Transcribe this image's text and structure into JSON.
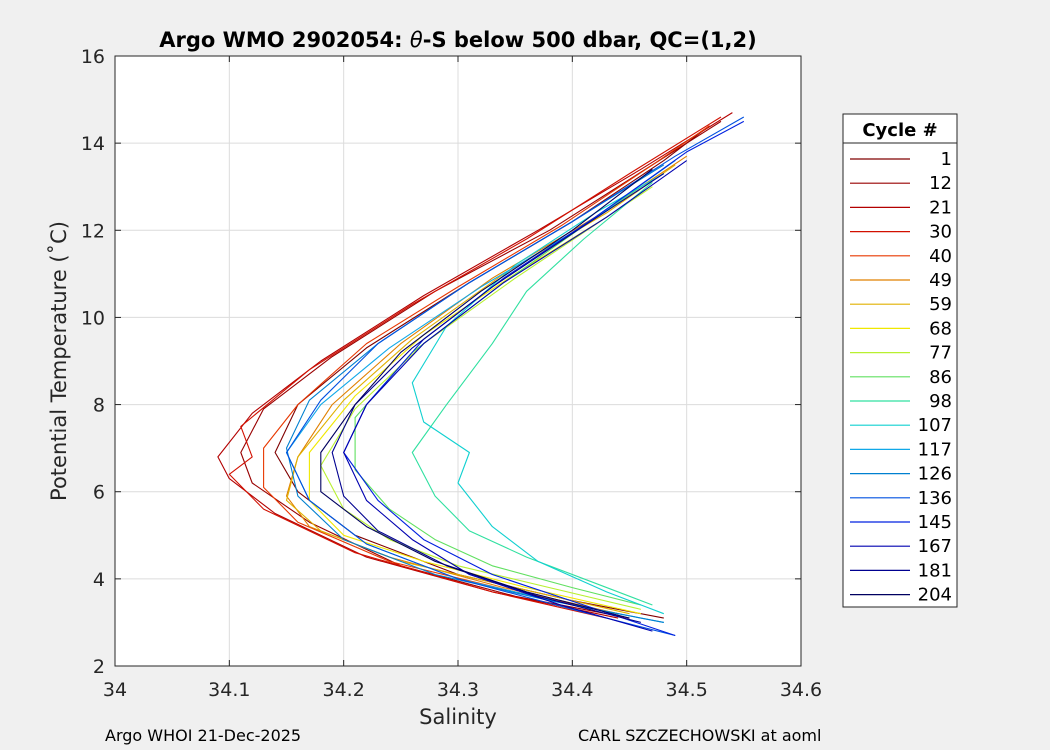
{
  "chart_data": {
    "type": "line",
    "title": {
      "prefix": "Argo WMO 2902054: ",
      "symbol": "θ",
      "suffix": "-S below 500 dbar,  QC=(1,2)"
    },
    "xlabel": "Salinity",
    "ylabel": "Potential Temperature (˚C)",
    "xlim": [
      34.0,
      34.6
    ],
    "ylim": [
      2,
      16
    ],
    "xticks": [
      34.0,
      34.1,
      34.2,
      34.3,
      34.4,
      34.5,
      34.6
    ],
    "xtick_labels": [
      "34",
      "34.1",
      "34.2",
      "34.3",
      "34.4",
      "34.5",
      "34.6"
    ],
    "yticks": [
      2,
      4,
      6,
      8,
      10,
      12,
      14,
      16
    ],
    "ytick_labels": [
      "2",
      "4",
      "6",
      "8",
      "10",
      "12",
      "14",
      "16"
    ],
    "grid": true,
    "legend": {
      "title": "Cycle #",
      "placement": "outside-right",
      "entries": [
        {
          "label": "1",
          "color": "#800000"
        },
        {
          "label": "12",
          "color": "#990000"
        },
        {
          "label": "21",
          "color": "#b30000"
        },
        {
          "label": "30",
          "color": "#d21000"
        },
        {
          "label": "40",
          "color": "#e83800"
        },
        {
          "label": "49",
          "color": "#e08000"
        },
        {
          "label": "59",
          "color": "#e0b000"
        },
        {
          "label": "68",
          "color": "#f0e800"
        },
        {
          "label": "77",
          "color": "#b8f030"
        },
        {
          "label": "86",
          "color": "#60e060"
        },
        {
          "label": "98",
          "color": "#30e0a0"
        },
        {
          "label": "107",
          "color": "#10d0d0"
        },
        {
          "label": "117",
          "color": "#10a8e8"
        },
        {
          "label": "126",
          "color": "#0080d0"
        },
        {
          "label": "136",
          "color": "#0050e0"
        },
        {
          "label": "145",
          "color": "#0020e0"
        },
        {
          "label": "167",
          "color": "#0000b0"
        },
        {
          "label": "181",
          "color": "#000090"
        },
        {
          "label": "204",
          "color": "#000060"
        }
      ]
    },
    "series": [
      {
        "name": "1",
        "color": "#800000",
        "points": [
          [
            34.48,
            3.1
          ],
          [
            34.4,
            3.5
          ],
          [
            34.3,
            4.1
          ],
          [
            34.21,
            5.0
          ],
          [
            34.16,
            6.0
          ],
          [
            34.14,
            6.9
          ],
          [
            34.16,
            8.0
          ],
          [
            34.22,
            9.3
          ],
          [
            34.31,
            10.8
          ],
          [
            34.4,
            12.2
          ],
          [
            34.48,
            13.6
          ],
          [
            34.52,
            14.4
          ]
        ]
      },
      {
        "name": "12",
        "color": "#990000",
        "points": [
          [
            34.45,
            3.1
          ],
          [
            34.35,
            3.6
          ],
          [
            34.25,
            4.3
          ],
          [
            34.17,
            5.3
          ],
          [
            34.12,
            6.2
          ],
          [
            34.11,
            6.9
          ],
          [
            34.13,
            7.9
          ],
          [
            34.19,
            9.1
          ],
          [
            34.28,
            10.6
          ],
          [
            34.38,
            12.0
          ],
          [
            34.47,
            13.5
          ],
          [
            34.53,
            14.5
          ]
        ]
      },
      {
        "name": "21",
        "color": "#b30000",
        "points": [
          [
            34.44,
            3.1
          ],
          [
            34.33,
            3.7
          ],
          [
            34.22,
            4.5
          ],
          [
            34.14,
            5.5
          ],
          [
            34.1,
            6.3
          ],
          [
            34.09,
            6.8
          ],
          [
            34.12,
            7.8
          ],
          [
            34.18,
            9.0
          ],
          [
            34.27,
            10.5
          ],
          [
            34.37,
            12.0
          ],
          [
            34.46,
            13.4
          ],
          [
            34.54,
            14.7
          ]
        ]
      },
      {
        "name": "30",
        "color": "#d21000",
        "points": [
          [
            34.43,
            3.1
          ],
          [
            34.33,
            3.7
          ],
          [
            34.21,
            4.6
          ],
          [
            34.13,
            5.6
          ],
          [
            34.1,
            6.4
          ],
          [
            34.12,
            6.8
          ],
          [
            34.11,
            7.5
          ],
          [
            34.17,
            8.8
          ],
          [
            34.26,
            10.3
          ],
          [
            34.36,
            11.8
          ],
          [
            34.45,
            13.3
          ],
          [
            34.53,
            14.6
          ]
        ]
      },
      {
        "name": "40",
        "color": "#e83800",
        "points": [
          [
            34.44,
            3.2
          ],
          [
            34.35,
            3.7
          ],
          [
            34.24,
            4.4
          ],
          [
            34.16,
            5.3
          ],
          [
            34.13,
            6.1
          ],
          [
            34.13,
            7.0
          ],
          [
            34.16,
            8.0
          ],
          [
            34.22,
            9.4
          ],
          [
            34.3,
            10.7
          ],
          [
            34.39,
            12.1
          ],
          [
            34.47,
            13.5
          ],
          [
            34.52,
            14.4
          ]
        ]
      },
      {
        "name": "49",
        "color": "#e08000",
        "points": [
          [
            34.44,
            3.2
          ],
          [
            34.34,
            3.8
          ],
          [
            34.24,
            4.5
          ],
          [
            34.17,
            5.2
          ],
          [
            34.15,
            5.9
          ],
          [
            34.16,
            6.8
          ],
          [
            34.19,
            8.0
          ],
          [
            34.25,
            9.4
          ],
          [
            34.33,
            10.9
          ],
          [
            34.42,
            12.3
          ],
          [
            34.5,
            13.7
          ]
        ]
      },
      {
        "name": "59",
        "color": "#e0b000",
        "points": [
          [
            34.45,
            3.2
          ],
          [
            34.35,
            3.8
          ],
          [
            34.25,
            4.4
          ],
          [
            34.18,
            5.1
          ],
          [
            34.15,
            5.8
          ],
          [
            34.16,
            6.8
          ],
          [
            34.2,
            8.1
          ],
          [
            34.26,
            9.5
          ],
          [
            34.34,
            11.0
          ],
          [
            34.43,
            12.4
          ],
          [
            34.49,
            13.5
          ]
        ]
      },
      {
        "name": "68",
        "color": "#f0e800",
        "points": [
          [
            34.46,
            3.2
          ],
          [
            34.36,
            3.8
          ],
          [
            34.27,
            4.4
          ],
          [
            34.2,
            5.0
          ],
          [
            34.17,
            5.8
          ],
          [
            34.17,
            6.9
          ],
          [
            34.21,
            8.2
          ],
          [
            34.27,
            9.6
          ],
          [
            34.35,
            11.0
          ],
          [
            34.43,
            12.3
          ]
        ]
      },
      {
        "name": "77",
        "color": "#b8f030",
        "points": [
          [
            34.46,
            3.3
          ],
          [
            34.38,
            3.8
          ],
          [
            34.3,
            4.3
          ],
          [
            34.24,
            4.9
          ],
          [
            34.2,
            5.6
          ],
          [
            34.18,
            6.6
          ],
          [
            34.21,
            7.9
          ],
          [
            34.27,
            9.4
          ],
          [
            34.35,
            10.9
          ],
          [
            34.43,
            12.3
          ],
          [
            34.47,
            13.0
          ]
        ]
      },
      {
        "name": "86",
        "color": "#60e060",
        "points": [
          [
            34.46,
            3.4
          ],
          [
            34.4,
            3.8
          ],
          [
            34.33,
            4.3
          ],
          [
            34.28,
            4.9
          ],
          [
            34.24,
            5.6
          ],
          [
            34.21,
            6.5
          ],
          [
            34.21,
            7.7
          ],
          [
            34.26,
            9.2
          ],
          [
            34.34,
            10.8
          ],
          [
            34.41,
            12.1
          ],
          [
            34.46,
            13.0
          ]
        ]
      },
      {
        "name": "98",
        "color": "#30e0a0",
        "points": [
          [
            34.47,
            3.4
          ],
          [
            34.42,
            3.9
          ],
          [
            34.36,
            4.5
          ],
          [
            34.31,
            5.1
          ],
          [
            34.28,
            5.9
          ],
          [
            34.26,
            6.9
          ],
          [
            34.29,
            8.0
          ],
          [
            34.33,
            9.4
          ],
          [
            34.36,
            10.6
          ],
          [
            34.41,
            11.8
          ],
          [
            34.47,
            13.1
          ]
        ]
      },
      {
        "name": "107",
        "color": "#10d0d0",
        "points": [
          [
            34.48,
            3.2
          ],
          [
            34.43,
            3.7
          ],
          [
            34.37,
            4.4
          ],
          [
            34.33,
            5.2
          ],
          [
            34.3,
            6.2
          ],
          [
            34.31,
            6.9
          ],
          [
            34.27,
            7.6
          ],
          [
            34.26,
            8.5
          ],
          [
            34.29,
            9.8
          ],
          [
            34.35,
            11.2
          ],
          [
            34.42,
            12.4
          ],
          [
            34.48,
            13.3
          ]
        ]
      },
      {
        "name": "117",
        "color": "#10a8e8",
        "points": [
          [
            34.48,
            3.0
          ],
          [
            34.4,
            3.4
          ],
          [
            34.3,
            4.0
          ],
          [
            34.22,
            4.8
          ],
          [
            34.17,
            5.8
          ],
          [
            34.15,
            6.9
          ],
          [
            34.18,
            8.0
          ],
          [
            34.24,
            9.3
          ],
          [
            34.32,
            10.7
          ],
          [
            34.41,
            12.1
          ],
          [
            34.49,
            13.6
          ]
        ]
      },
      {
        "name": "126",
        "color": "#0080d0",
        "points": [
          [
            34.48,
            3.0
          ],
          [
            34.38,
            3.5
          ],
          [
            34.28,
            4.1
          ],
          [
            34.2,
            4.9
          ],
          [
            34.16,
            5.9
          ],
          [
            34.15,
            7.0
          ],
          [
            34.17,
            8.1
          ],
          [
            34.23,
            9.4
          ],
          [
            34.31,
            10.8
          ],
          [
            34.4,
            12.2
          ],
          [
            34.48,
            13.5
          ]
        ]
      },
      {
        "name": "136",
        "color": "#0050e0",
        "points": [
          [
            34.49,
            2.7
          ],
          [
            34.4,
            3.3
          ],
          [
            34.3,
            4.0
          ],
          [
            34.22,
            4.8
          ],
          [
            34.17,
            5.8
          ],
          [
            34.15,
            6.9
          ],
          [
            34.18,
            8.1
          ],
          [
            34.23,
            9.4
          ],
          [
            34.31,
            10.8
          ],
          [
            34.4,
            12.2
          ],
          [
            34.49,
            13.7
          ],
          [
            34.55,
            14.6
          ]
        ]
      },
      {
        "name": "145",
        "color": "#0020e0",
        "points": [
          [
            34.49,
            2.7
          ],
          [
            34.41,
            3.4
          ],
          [
            34.33,
            4.1
          ],
          [
            34.27,
            4.9
          ],
          [
            34.23,
            5.8
          ],
          [
            34.2,
            6.9
          ],
          [
            34.22,
            8.0
          ],
          [
            34.27,
            9.5
          ],
          [
            34.34,
            10.9
          ],
          [
            34.42,
            12.3
          ],
          [
            34.5,
            13.8
          ],
          [
            34.55,
            14.5
          ]
        ]
      },
      {
        "name": "167",
        "color": "#0000b0",
        "points": [
          [
            34.47,
            2.8
          ],
          [
            34.39,
            3.4
          ],
          [
            34.31,
            4.1
          ],
          [
            34.26,
            4.9
          ],
          [
            34.22,
            5.8
          ],
          [
            34.2,
            6.9
          ],
          [
            34.22,
            8.0
          ],
          [
            34.27,
            9.4
          ],
          [
            34.34,
            10.8
          ],
          [
            34.43,
            12.3
          ],
          [
            34.5,
            13.6
          ]
        ]
      },
      {
        "name": "181",
        "color": "#000090",
        "points": [
          [
            34.46,
            3.0
          ],
          [
            34.37,
            3.6
          ],
          [
            34.29,
            4.3
          ],
          [
            34.23,
            5.1
          ],
          [
            34.2,
            5.9
          ],
          [
            34.19,
            6.9
          ],
          [
            34.21,
            8.0
          ],
          [
            34.26,
            9.3
          ],
          [
            34.33,
            10.7
          ],
          [
            34.41,
            12.1
          ],
          [
            34.48,
            13.3
          ]
        ]
      },
      {
        "name": "204",
        "color": "#000060",
        "points": [
          [
            34.45,
            3.1
          ],
          [
            34.36,
            3.7
          ],
          [
            34.28,
            4.4
          ],
          [
            34.22,
            5.2
          ],
          [
            34.18,
            6.0
          ],
          [
            34.18,
            6.9
          ],
          [
            34.21,
            8.0
          ],
          [
            34.25,
            9.2
          ],
          [
            34.32,
            10.6
          ],
          [
            34.4,
            12.0
          ],
          [
            34.47,
            13.4
          ]
        ]
      }
    ]
  },
  "footer": {
    "left": "Argo WHOI 21-Dec-2025",
    "right": "CARL SZCZECHOWSKI at aoml"
  }
}
